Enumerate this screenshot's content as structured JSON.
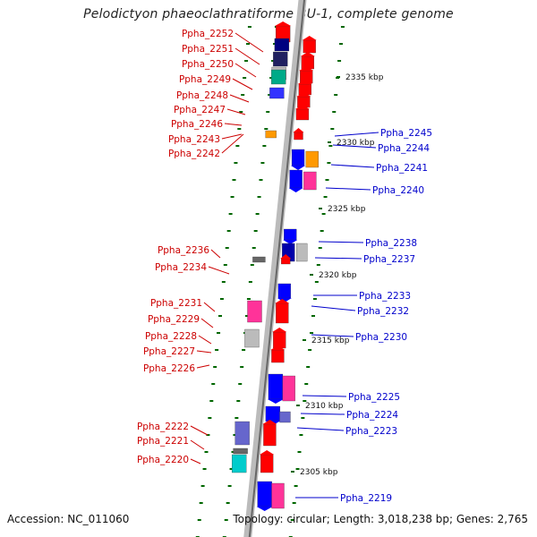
{
  "title": "Pelodictyon phaeoclathratiforme BU-1, complete genome",
  "footer": {
    "accession": "Accession: NC_011060",
    "topology": "Topology: circular; Length: 3,018,238 bp; Genes: 2,765"
  },
  "scale_labels": [
    "2335 kbp",
    "2330 kbp",
    "2325 kbp",
    "2320 kbp",
    "2315 kbp",
    "2310 kbp",
    "2305 kbp"
  ],
  "colors": {
    "left_label": "#cc0000",
    "right_label": "#0000cc",
    "forward_gene": "#ff0000",
    "reverse_gene": "#0000ff",
    "tick": "#006600",
    "backbone": "#999999"
  },
  "left_labels": [
    "Ppha_2252",
    "Ppha_2251",
    "Ppha_2250",
    "Ppha_2249",
    "Ppha_2248",
    "Ppha_2247",
    "Ppha_2246",
    "Ppha_2243",
    "Ppha_2242",
    "Ppha_2236",
    "Ppha_2234",
    "Ppha_2231",
    "Ppha_2229",
    "Ppha_2228",
    "Ppha_2227",
    "Ppha_2226",
    "Ppha_2222",
    "Ppha_2221",
    "Ppha_2220"
  ],
  "right_labels": [
    "Ppha_2245",
    "Ppha_2244",
    "Ppha_2241",
    "Ppha_2240",
    "Ppha_2238",
    "Ppha_2237",
    "Ppha_2233",
    "Ppha_2232",
    "Ppha_2230",
    "Ppha_2225",
    "Ppha_2224",
    "Ppha_2223",
    "Ppha_2219"
  ]
}
